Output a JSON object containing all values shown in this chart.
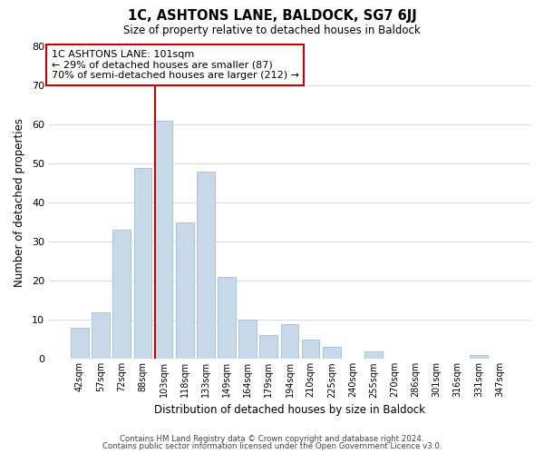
{
  "title": "1C, ASHTONS LANE, BALDOCK, SG7 6JJ",
  "subtitle": "Size of property relative to detached houses in Baldock",
  "xlabel": "Distribution of detached houses by size in Baldock",
  "ylabel": "Number of detached properties",
  "footer_line1": "Contains HM Land Registry data © Crown copyright and database right 2024.",
  "footer_line2": "Contains public sector information licensed under the Open Government Licence v3.0.",
  "bar_labels": [
    "42sqm",
    "57sqm",
    "72sqm",
    "88sqm",
    "103sqm",
    "118sqm",
    "133sqm",
    "149sqm",
    "164sqm",
    "179sqm",
    "194sqm",
    "210sqm",
    "225sqm",
    "240sqm",
    "255sqm",
    "270sqm",
    "286sqm",
    "301sqm",
    "316sqm",
    "331sqm",
    "347sqm"
  ],
  "bar_values": [
    8,
    12,
    33,
    49,
    61,
    35,
    48,
    21,
    10,
    6,
    9,
    5,
    3,
    0,
    2,
    0,
    0,
    0,
    0,
    1,
    0
  ],
  "bar_color": "#c8daea",
  "bar_edge_color": "#a8c4d8",
  "grid_color": "#d8d8d8",
  "vline_x_index": 4,
  "vline_color": "#cc0000",
  "annotation_text": "1C ASHTONS LANE: 101sqm\n← 29% of detached houses are smaller (87)\n70% of semi-detached houses are larger (212) →",
  "annotation_box_edgecolor": "#cc0000",
  "ylim": [
    0,
    80
  ],
  "yticks": [
    0,
    10,
    20,
    30,
    40,
    50,
    60,
    70,
    80
  ],
  "bg_color": "#ffffff"
}
